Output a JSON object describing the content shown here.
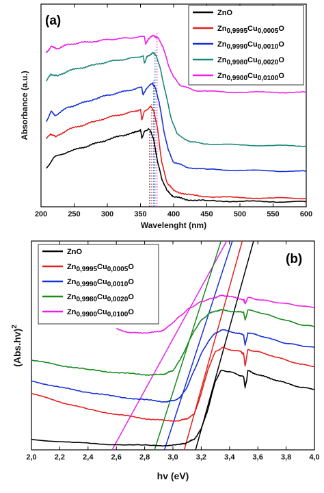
{
  "chart_data": [
    {
      "panel_label": "(a)",
      "type": "line",
      "xlabel": "Wavelenght (nm)",
      "ylabel": "Absorbance (a.u.)",
      "xlim": [
        200,
        600
      ],
      "ylim": [
        0,
        1
      ],
      "x_ticks": [
        200,
        250,
        300,
        350,
        400,
        450,
        500,
        550,
        600
      ],
      "legend_position": "top-right",
      "grid": false,
      "dotted_markers_x": [
        364,
        367,
        370,
        372,
        375
      ],
      "series": [
        {
          "name": "ZnO",
          "color": "#000000",
          "legend": [
            {
              "t": "Zn",
              "s": "n"
            },
            {
              "t": "O",
              "s": "n"
            }
          ],
          "x": [
            208,
            220,
            240,
            260,
            280,
            300,
            320,
            340,
            350,
            352,
            356,
            362,
            366,
            370,
            376,
            382,
            390,
            400,
            420,
            450,
            500,
            550,
            600
          ],
          "y": [
            0.19,
            0.245,
            0.27,
            0.29,
            0.31,
            0.33,
            0.35,
            0.365,
            0.38,
            0.34,
            0.37,
            0.385,
            0.37,
            0.33,
            0.22,
            0.14,
            0.08,
            0.05,
            0.035,
            0.03,
            0.027,
            0.025,
            0.025
          ]
        },
        {
          "name": "Zn0,9995Cu0,0005O",
          "color": "#e0201c",
          "legend": [
            {
              "t": "Zn",
              "s": "n"
            },
            {
              "t": "0,9995",
              "s": "b"
            },
            {
              "t": "Cu",
              "s": "n"
            },
            {
              "t": "0,0005",
              "s": "b"
            },
            {
              "t": "O",
              "s": "n"
            }
          ],
          "x": [
            208,
            215,
            222,
            240,
            260,
            280,
            300,
            320,
            340,
            350,
            352,
            356,
            365,
            370,
            376,
            382,
            390,
            400,
            420,
            450,
            500,
            550,
            600
          ],
          "y": [
            0.335,
            0.36,
            0.345,
            0.38,
            0.4,
            0.42,
            0.44,
            0.455,
            0.47,
            0.48,
            0.43,
            0.47,
            0.495,
            0.475,
            0.38,
            0.22,
            0.12,
            0.08,
            0.06,
            0.05,
            0.045,
            0.043,
            0.042
          ]
        },
        {
          "name": "Zn0,9990Cu0,0010O",
          "color": "#1330d6",
          "legend": [
            {
              "t": "Zn",
              "s": "n"
            },
            {
              "t": "0,9990",
              "s": "b"
            },
            {
              "t": "Cu",
              "s": "n"
            },
            {
              "t": "0,0010",
              "s": "b"
            },
            {
              "t": "O",
              "s": "n"
            }
          ],
          "x": [
            208,
            215,
            222,
            240,
            260,
            280,
            300,
            320,
            340,
            352,
            354,
            358,
            368,
            372,
            378,
            385,
            392,
            400,
            420,
            450,
            500,
            550,
            600
          ],
          "y": [
            0.42,
            0.47,
            0.45,
            0.49,
            0.51,
            0.53,
            0.55,
            0.565,
            0.58,
            0.59,
            0.55,
            0.58,
            0.61,
            0.59,
            0.52,
            0.38,
            0.28,
            0.22,
            0.195,
            0.185,
            0.18,
            0.177,
            0.175
          ]
        },
        {
          "name": "Zn0,9980Cu0,0020O",
          "color": "#17877a",
          "legend": [
            {
              "t": "Zn",
              "s": "n"
            },
            {
              "t": "0,9980",
              "s": "b"
            },
            {
              "t": "Cu",
              "s": "n"
            },
            {
              "t": "0,0020",
              "s": "b"
            },
            {
              "t": "O",
              "s": "n"
            }
          ],
          "x": [
            208,
            215,
            225,
            240,
            260,
            280,
            300,
            320,
            340,
            354,
            356,
            360,
            368,
            374,
            380,
            388,
            396,
            405,
            425,
            450,
            500,
            550,
            600
          ],
          "y": [
            0.62,
            0.655,
            0.645,
            0.67,
            0.685,
            0.7,
            0.715,
            0.725,
            0.735,
            0.745,
            0.71,
            0.74,
            0.76,
            0.745,
            0.68,
            0.56,
            0.44,
            0.36,
            0.32,
            0.31,
            0.305,
            0.302,
            0.3
          ]
        },
        {
          "name": "Zn0,9900Cu0,0100O",
          "color": "#ee1ee8",
          "legend": [
            {
              "t": "Zn",
              "s": "n"
            },
            {
              "t": "0,9900",
              "s": "b"
            },
            {
              "t": "Cu",
              "s": "n"
            },
            {
              "t": "0,0100",
              "s": "b"
            },
            {
              "t": "O",
              "s": "n"
            }
          ],
          "x": [
            208,
            215,
            225,
            240,
            260,
            280,
            300,
            320,
            340,
            356,
            358,
            362,
            370,
            376,
            384,
            392,
            400,
            410,
            430,
            450,
            500,
            550,
            600
          ],
          "y": [
            0.76,
            0.79,
            0.78,
            0.8,
            0.81,
            0.815,
            0.825,
            0.83,
            0.835,
            0.84,
            0.8,
            0.83,
            0.845,
            0.835,
            0.79,
            0.7,
            0.64,
            0.6,
            0.575,
            0.57,
            0.565,
            0.565,
            0.565
          ]
        }
      ]
    },
    {
      "panel_label": "(b)",
      "type": "line",
      "xlabel": "hv (eV)",
      "ylabel": "(Abs.hv)",
      "ylabel_sup": "2",
      "xlim": [
        2.0,
        4.0
      ],
      "ylim": [
        0,
        1
      ],
      "x_ticks": [
        "2,0",
        "2,2",
        "2,4",
        "2,6",
        "2,8",
        "3,0",
        "3,2",
        "3,4",
        "3,6",
        "3,8",
        "4,0"
      ],
      "legend_position": "top-left",
      "grid": false,
      "series": [
        {
          "name": "ZnO",
          "color": "#000000",
          "legend": [
            {
              "t": "Zn",
              "s": "n"
            },
            {
              "t": "O",
              "s": "n"
            }
          ],
          "x": [
            2.0,
            2.3,
            2.6,
            2.9,
            3.05,
            3.1,
            3.15,
            3.2,
            3.25,
            3.3,
            3.34,
            3.4,
            3.46,
            3.5,
            3.51,
            3.52,
            3.53,
            3.6,
            3.7,
            3.8,
            3.9,
            4.0
          ],
          "y": [
            0.05,
            0.035,
            0.025,
            0.02,
            0.025,
            0.035,
            0.05,
            0.1,
            0.2,
            0.33,
            0.38,
            0.375,
            0.36,
            0.35,
            0.3,
            0.33,
            0.38,
            0.36,
            0.34,
            0.32,
            0.3,
            0.29
          ]
        },
        {
          "name": "Zn0,9995Cu0,0005O",
          "color": "#e0201c",
          "legend": [
            {
              "t": "Zn",
              "s": "n"
            },
            {
              "t": "0,9995",
              "s": "b"
            },
            {
              "t": "Cu",
              "s": "n"
            },
            {
              "t": "0,0005",
              "s": "b"
            },
            {
              "t": "O",
              "s": "n"
            }
          ],
          "x": [
            2.0,
            2.2,
            2.4,
            2.6,
            2.8,
            2.95,
            3.05,
            3.1,
            3.15,
            3.2,
            3.25,
            3.3,
            3.35,
            3.4,
            3.48,
            3.5,
            3.51,
            3.53,
            3.6,
            3.7,
            3.8,
            3.9,
            4.0
          ],
          "y": [
            0.27,
            0.23,
            0.195,
            0.17,
            0.15,
            0.14,
            0.14,
            0.15,
            0.17,
            0.27,
            0.39,
            0.47,
            0.49,
            0.48,
            0.47,
            0.46,
            0.4,
            0.48,
            0.47,
            0.45,
            0.43,
            0.41,
            0.4
          ]
        },
        {
          "name": "Zn0,9990Cu0,0010O",
          "color": "#1330d6",
          "legend": [
            {
              "t": "Zn",
              "s": "n"
            },
            {
              "t": "0,9990",
              "s": "b"
            },
            {
              "t": "Cu",
              "s": "n"
            },
            {
              "t": "0,0010",
              "s": "b"
            },
            {
              "t": "O",
              "s": "n"
            }
          ],
          "x": [
            2.0,
            2.2,
            2.4,
            2.6,
            2.8,
            2.95,
            3.0,
            3.05,
            3.1,
            3.15,
            3.2,
            3.25,
            3.3,
            3.35,
            3.45,
            3.5,
            3.51,
            3.53,
            3.6,
            3.7,
            3.8,
            3.9,
            4.0
          ],
          "y": [
            0.33,
            0.3,
            0.275,
            0.255,
            0.24,
            0.23,
            0.235,
            0.25,
            0.3,
            0.38,
            0.46,
            0.52,
            0.56,
            0.575,
            0.56,
            0.55,
            0.5,
            0.56,
            0.55,
            0.53,
            0.51,
            0.5,
            0.49
          ]
        },
        {
          "name": "Zn0,9980Cu0,0020O",
          "color": "#15891c",
          "legend": [
            {
              "t": "Zn",
              "s": "n"
            },
            {
              "t": "0,9980",
              "s": "b"
            },
            {
              "t": "Cu",
              "s": "n"
            },
            {
              "t": "0,0020",
              "s": "b"
            },
            {
              "t": "O",
              "s": "n"
            }
          ],
          "x": [
            2.0,
            2.2,
            2.4,
            2.6,
            2.8,
            2.9,
            2.95,
            3.0,
            3.05,
            3.1,
            3.15,
            3.2,
            3.25,
            3.3,
            3.35,
            3.45,
            3.5,
            3.51,
            3.53,
            3.6,
            3.7,
            3.8,
            3.9,
            4.0
          ],
          "y": [
            0.43,
            0.405,
            0.385,
            0.37,
            0.36,
            0.36,
            0.365,
            0.38,
            0.43,
            0.5,
            0.57,
            0.62,
            0.65,
            0.665,
            0.67,
            0.66,
            0.66,
            0.62,
            0.67,
            0.66,
            0.64,
            0.62,
            0.6,
            0.59
          ]
        },
        {
          "name": "Zn0,9900Cu0,0100O",
          "color": "#ea1fe6",
          "legend": [
            {
              "t": "Zn",
              "s": "n"
            },
            {
              "t": "0,9900",
              "s": "b"
            },
            {
              "t": "Cu",
              "s": "n"
            },
            {
              "t": "0,0100",
              "s": "b"
            },
            {
              "t": "O",
              "s": "n"
            }
          ],
          "x": [
            2.6,
            2.7,
            2.8,
            2.9,
            2.95,
            3.0,
            3.05,
            3.1,
            3.15,
            3.2,
            3.25,
            3.3,
            3.35,
            3.4,
            3.5,
            3.51,
            3.53,
            3.6,
            3.7,
            3.8,
            3.9,
            4.0
          ],
          "y": [
            0.58,
            0.56,
            0.56,
            0.565,
            0.58,
            0.61,
            0.64,
            0.67,
            0.69,
            0.71,
            0.72,
            0.73,
            0.74,
            0.735,
            0.72,
            0.7,
            0.73,
            0.72,
            0.71,
            0.7,
            0.69,
            0.68
          ]
        }
      ],
      "tangent_lines": [
        {
          "color": "#ea1fe6",
          "x": [
            2.57,
            3.38
          ],
          "y": [
            0.0,
            1.0
          ]
        },
        {
          "color": "#15891c",
          "x": [
            2.87,
            3.34
          ],
          "y": [
            0.0,
            1.0
          ]
        },
        {
          "color": "#1330d6",
          "x": [
            2.94,
            3.42
          ],
          "y": [
            0.0,
            1.0
          ]
        },
        {
          "color": "#e0201c",
          "x": [
            3.08,
            3.49
          ],
          "y": [
            0.0,
            1.0
          ]
        },
        {
          "color": "#000000",
          "x": [
            3.16,
            3.57
          ],
          "y": [
            0.0,
            1.0
          ]
        }
      ]
    }
  ]
}
